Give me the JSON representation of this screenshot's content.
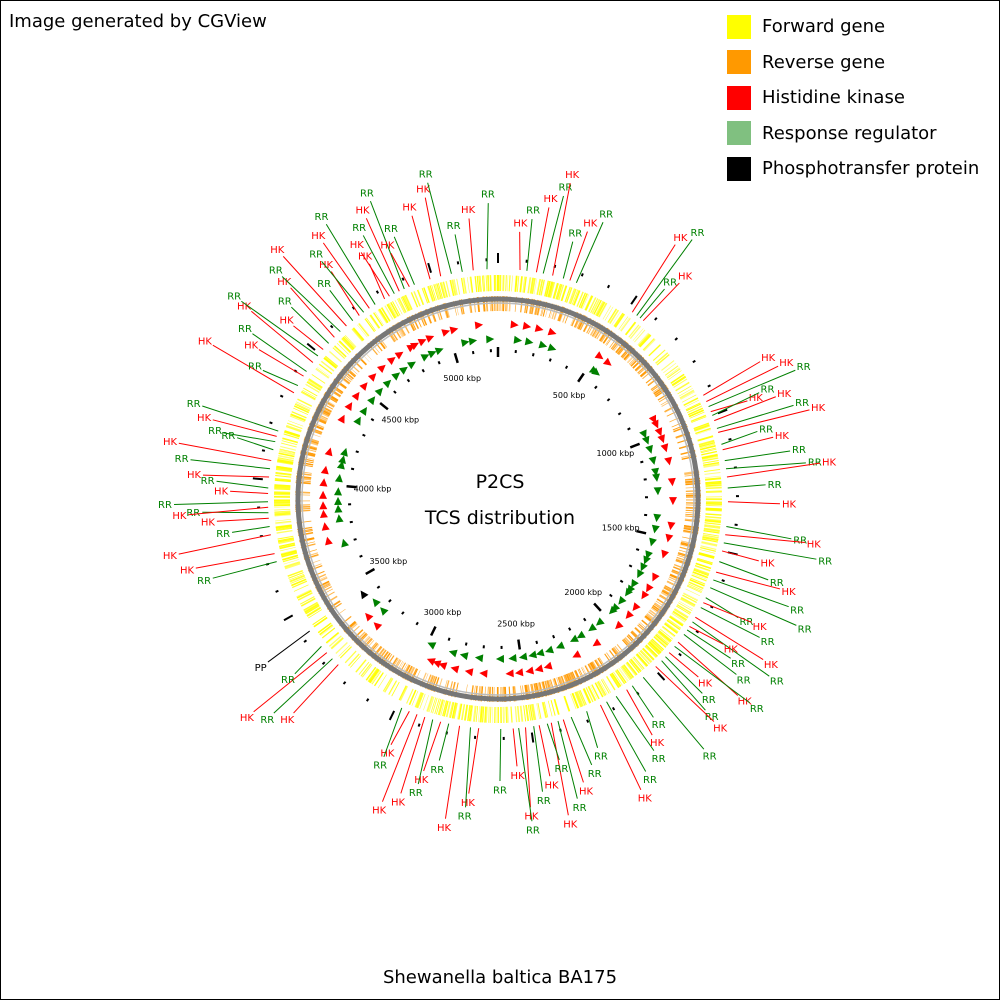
{
  "credit": "Image generated by CGView",
  "legend": [
    {
      "label": "Forward gene",
      "color": "#ffff00"
    },
    {
      "label": "Reverse gene",
      "color": "#ff9900"
    },
    {
      "label": "Histidine kinase",
      "color": "#ff0000"
    },
    {
      "label": "Response regulator",
      "color": "#80c080"
    },
    {
      "label": "Phosphotransfer protein",
      "color": "#000000"
    }
  ],
  "map": {
    "title": "P2CS",
    "subtitle": "TCS distribution",
    "organism": "Shewanella baltica BA175",
    "genome_length_kbp": 5240,
    "tick_labels": [
      "500 kbp",
      "1000 kbp",
      "1500 kbp",
      "2000 kbp",
      "2500 kbp",
      "3000 kbp",
      "3500 kbp",
      "4000 kbp",
      "4500 kbp",
      "5000 kbp"
    ],
    "colors": {
      "hk": "#ff0000",
      "rr": "#008000",
      "pp": "#000000",
      "forward": "#ffff00",
      "reverse": "#ff9900",
      "backbone": "#808080"
    },
    "features": [
      {
        "kind": "HK",
        "label": "HK",
        "pos_kbp": 80
      },
      {
        "kind": "RR",
        "label": "RR",
        "pos_kbp": 105
      },
      {
        "kind": "HK",
        "label": "HK",
        "pos_kbp": 140
      },
      {
        "kind": "RR",
        "label": "RR",
        "pos_kbp": 165
      },
      {
        "kind": "HK",
        "label": "HK",
        "pos_kbp": 200
      },
      {
        "kind": "RR",
        "label": "RR",
        "pos_kbp": 240
      },
      {
        "kind": "HK",
        "label": "HK",
        "pos_kbp": 265
      },
      {
        "kind": "RR",
        "label": "RR",
        "pos_kbp": 290
      },
      {
        "kind": "HK",
        "label": "HK",
        "pos_kbp": 520
      },
      {
        "kind": "RR",
        "label": "RR",
        "pos_kbp": 540
      },
      {
        "kind": "RR",
        "label": "RR",
        "pos_kbp": 555
      },
      {
        "kind": "HK",
        "label": "HK",
        "pos_kbp": 570
      },
      {
        "kind": "HK",
        "label": "HK",
        "pos_kbp": 920
      },
      {
        "kind": "HK",
        "label": "HK",
        "pos_kbp": 945
      },
      {
        "kind": "RR",
        "label": "RR",
        "pos_kbp": 965
      },
      {
        "kind": "HK",
        "label": "HK",
        "pos_kbp": 985
      },
      {
        "kind": "RR",
        "label": "RR",
        "pos_kbp": 1000
      },
      {
        "kind": "HK",
        "label": "HK",
        "pos_kbp": 1020
      },
      {
        "kind": "RR",
        "label": "RR",
        "pos_kbp": 1050
      },
      {
        "kind": "HK",
        "label": "HK",
        "pos_kbp": 1065
      },
      {
        "kind": "RR",
        "label": "RR",
        "pos_kbp": 1110
      },
      {
        "kind": "HK",
        "label": "HK",
        "pos_kbp": 1130
      },
      {
        "kind": "RR",
        "label": "RR",
        "pos_kbp": 1170
      },
      {
        "kind": "RR",
        "label": "RR",
        "pos_kbp": 1200
      },
      {
        "kind": "HK",
        "label": "HK",
        "pos_kbp": 1230
      },
      {
        "kind": "RR",
        "label": "RR",
        "pos_kbp": 1270
      },
      {
        "kind": "HK",
        "label": "HK",
        "pos_kbp": 1320
      },
      {
        "kind": "RR",
        "label": "RR",
        "pos_kbp": 1410
      },
      {
        "kind": "HK",
        "label": "HK",
        "pos_kbp": 1440
      },
      {
        "kind": "RR",
        "label": "RR",
        "pos_kbp": 1470
      },
      {
        "kind": "HK",
        "label": "HK",
        "pos_kbp": 1500
      },
      {
        "kind": "RR",
        "label": "RR",
        "pos_kbp": 1540
      },
      {
        "kind": "HK",
        "label": "HK",
        "pos_kbp": 1580
      },
      {
        "kind": "RR",
        "label": "RR",
        "pos_kbp": 1610
      },
      {
        "kind": "RR",
        "label": "RR",
        "pos_kbp": 1640
      },
      {
        "kind": "RR",
        "label": "RR",
        "pos_kbp": 1680
      },
      {
        "kind": "HK",
        "label": "HK",
        "pos_kbp": 1700
      },
      {
        "kind": "RR",
        "label": "RR",
        "pos_kbp": 1720
      },
      {
        "kind": "HK",
        "label": "HK",
        "pos_kbp": 1760
      },
      {
        "kind": "RR",
        "label": "RR",
        "pos_kbp": 1780
      },
      {
        "kind": "HK",
        "label": "HK",
        "pos_kbp": 1800
      },
      {
        "kind": "RR",
        "label": "RR",
        "pos_kbp": 1815
      },
      {
        "kind": "RR",
        "label": "RR",
        "pos_kbp": 1835
      },
      {
        "kind": "HK",
        "label": "HK",
        "pos_kbp": 1870
      },
      {
        "kind": "RR",
        "label": "RR",
        "pos_kbp": 1890
      },
      {
        "kind": "HK",
        "label": "HK",
        "pos_kbp": 1920
      },
      {
        "kind": "RR",
        "label": "RR",
        "pos_kbp": 1940
      },
      {
        "kind": "RR",
        "label": "RR",
        "pos_kbp": 1960
      },
      {
        "kind": "HK",
        "label": "HK",
        "pos_kbp": 1990
      },
      {
        "kind": "RR",
        "label": "RR",
        "pos_kbp": 2050
      },
      {
        "kind": "RR",
        "label": "RR",
        "pos_kbp": 2100
      },
      {
        "kind": "HK",
        "label": "HK",
        "pos_kbp": 2125
      },
      {
        "kind": "RR",
        "label": "RR",
        "pos_kbp": 2170
      },
      {
        "kind": "RR",
        "label": "RR",
        "pos_kbp": 2210
      },
      {
        "kind": "HK",
        "label": "HK",
        "pos_kbp": 2235
      },
      {
        "kind": "RR",
        "label": "RR",
        "pos_kbp": 2290
      },
      {
        "kind": "RR",
        "label": "RR",
        "pos_kbp": 2350
      },
      {
        "kind": "HK",
        "label": "HK",
        "pos_kbp": 2380
      },
      {
        "kind": "RR",
        "label": "RR",
        "pos_kbp": 2400
      },
      {
        "kind": "HK",
        "label": "HK",
        "pos_kbp": 2425
      },
      {
        "kind": "RR",
        "label": "RR",
        "pos_kbp": 2440
      },
      {
        "kind": "HK",
        "label": "HK",
        "pos_kbp": 2470
      },
      {
        "kind": "RR",
        "label": "RR",
        "pos_kbp": 2490
      },
      {
        "kind": "HK",
        "label": "HK",
        "pos_kbp": 2520
      },
      {
        "kind": "RR",
        "label": "RR",
        "pos_kbp": 2545
      },
      {
        "kind": "HK",
        "label": "HK",
        "pos_kbp": 2565
      },
      {
        "kind": "RR",
        "label": "RR",
        "pos_kbp": 2610
      },
      {
        "kind": "HK",
        "label": "HK",
        "pos_kbp": 2690
      },
      {
        "kind": "RR",
        "label": "RR",
        "pos_kbp": 2720
      },
      {
        "kind": "HK",
        "label": "HK",
        "pos_kbp": 2760
      },
      {
        "kind": "RR",
        "label": "RR",
        "pos_kbp": 2800
      },
      {
        "kind": "HK",
        "label": "HK",
        "pos_kbp": 2830
      },
      {
        "kind": "RR",
        "label": "RR",
        "pos_kbp": 2860
      },
      {
        "kind": "HK",
        "label": "HK",
        "pos_kbp": 2890
      },
      {
        "kind": "HK",
        "label": "HK",
        "pos_kbp": 2920
      },
      {
        "kind": "HK",
        "label": "HK",
        "pos_kbp": 2950
      },
      {
        "kind": "RR",
        "label": "RR",
        "pos_kbp": 2980
      },
      {
        "kind": "HK",
        "label": "HK",
        "pos_kbp": 3260
      },
      {
        "kind": "RR",
        "label": "RR",
        "pos_kbp": 3290
      },
      {
        "kind": "HK",
        "label": "HK",
        "pos_kbp": 3320
      },
      {
        "kind": "RR",
        "label": "RR",
        "pos_kbp": 3350
      },
      {
        "kind": "PP",
        "label": "PP",
        "pos_kbp": 3420
      },
      {
        "kind": "RR",
        "label": "RR",
        "pos_kbp": 3700
      },
      {
        "kind": "HK",
        "label": "HK",
        "pos_kbp": 3730
      },
      {
        "kind": "HK",
        "label": "HK",
        "pos_kbp": 3800
      },
      {
        "kind": "RR",
        "label": "RR",
        "pos_kbp": 3830
      },
      {
        "kind": "HK",
        "label": "HK",
        "pos_kbp": 3860
      },
      {
        "kind": "RR",
        "label": "RR",
        "pos_kbp": 3880
      },
      {
        "kind": "HK",
        "label": "HK",
        "pos_kbp": 3900
      },
      {
        "kind": "RR",
        "label": "RR",
        "pos_kbp": 3920
      },
      {
        "kind": "HK",
        "label": "HK",
        "pos_kbp": 3950
      },
      {
        "kind": "RR",
        "label": "RR",
        "pos_kbp": 3970
      },
      {
        "kind": "HK",
        "label": "HK",
        "pos_kbp": 4010
      },
      {
        "kind": "RR",
        "label": "RR",
        "pos_kbp": 4040
      },
      {
        "kind": "HK",
        "label": "HK",
        "pos_kbp": 4070
      },
      {
        "kind": "RR",
        "label": "RR",
        "pos_kbp": 4110
      },
      {
        "kind": "RR",
        "label": "RR",
        "pos_kbp": 4140
      },
      {
        "kind": "HK",
        "label": "HK",
        "pos_kbp": 4160
      },
      {
        "kind": "RR",
        "label": "RR",
        "pos_kbp": 4180
      },
      {
        "kind": "HK",
        "label": "HK",
        "pos_kbp": 4330
      },
      {
        "kind": "RR",
        "label": "RR",
        "pos_kbp": 4360
      },
      {
        "kind": "HK",
        "label": "HK",
        "pos_kbp": 4400
      },
      {
        "kind": "RR",
        "label": "RR",
        "pos_kbp": 4420
      },
      {
        "kind": "HK",
        "label": "HK",
        "pos_kbp": 4460
      },
      {
        "kind": "RR",
        "label": "RR",
        "pos_kbp": 4490
      },
      {
        "kind": "HK",
        "label": "HK",
        "pos_kbp": 4520
      },
      {
        "kind": "RR",
        "label": "RR",
        "pos_kbp": 4550
      },
      {
        "kind": "HK",
        "label": "HK",
        "pos_kbp": 4580
      },
      {
        "kind": "RR",
        "label": "RR",
        "pos_kbp": 4610
      },
      {
        "kind": "HK",
        "label": "HK",
        "pos_kbp": 4640
      },
      {
        "kind": "RR",
        "label": "RR",
        "pos_kbp": 4670
      },
      {
        "kind": "HK",
        "label": "HK",
        "pos_kbp": 4700
      },
      {
        "kind": "RR",
        "label": "RR",
        "pos_kbp": 4720
      },
      {
        "kind": "HK",
        "label": "HK",
        "pos_kbp": 4745
      },
      {
        "kind": "RR",
        "label": "RR",
        "pos_kbp": 4770
      },
      {
        "kind": "HK",
        "label": "HK",
        "pos_kbp": 4810
      },
      {
        "kind": "HK",
        "label": "HK",
        "pos_kbp": 4830
      },
      {
        "kind": "RR",
        "label": "RR",
        "pos_kbp": 4850
      },
      {
        "kind": "HK",
        "label": "HK",
        "pos_kbp": 4870
      },
      {
        "kind": "RR",
        "label": "RR",
        "pos_kbp": 4890
      },
      {
        "kind": "HK",
        "label": "HK",
        "pos_kbp": 4910
      },
      {
        "kind": "RR",
        "label": "RR",
        "pos_kbp": 4930
      },
      {
        "kind": "HK",
        "label": "HK",
        "pos_kbp": 4990
      },
      {
        "kind": "HK",
        "label": "HK",
        "pos_kbp": 5030
      },
      {
        "kind": "RR",
        "label": "RR",
        "pos_kbp": 5070
      },
      {
        "kind": "RR",
        "label": "RR",
        "pos_kbp": 5110
      },
      {
        "kind": "HK",
        "label": "HK",
        "pos_kbp": 5150
      },
      {
        "kind": "RR",
        "label": "RR",
        "pos_kbp": 5200
      }
    ]
  }
}
